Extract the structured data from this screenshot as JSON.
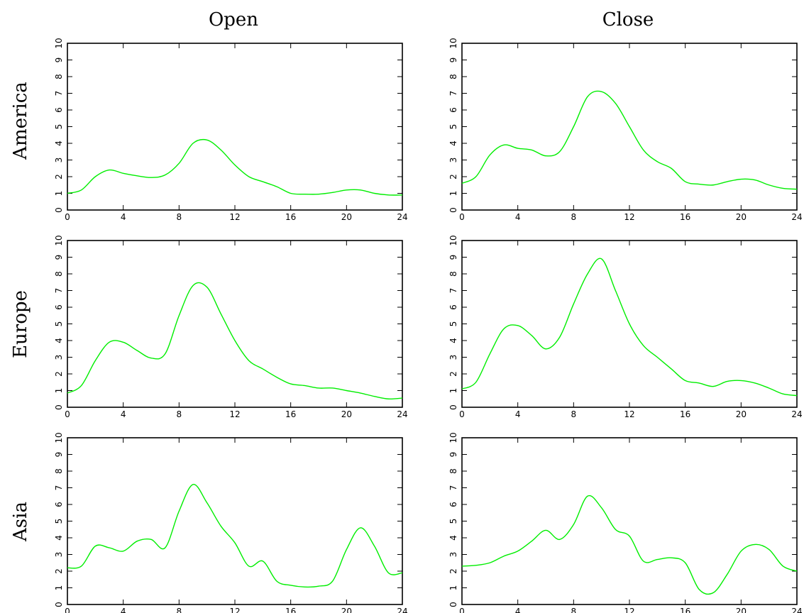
{
  "column_titles": [
    "Open",
    "Close"
  ],
  "row_titles": [
    "America",
    "Europe",
    "Asia"
  ],
  "line_color": "#00ee00",
  "chart_data": [
    {
      "type": "line",
      "row": "America",
      "column": "Open",
      "xlim": [
        0,
        24
      ],
      "ylim": [
        0,
        10
      ],
      "xticks": [
        0,
        4,
        8,
        12,
        16,
        20,
        24
      ],
      "yticks": [
        0,
        1,
        2,
        3,
        4,
        5,
        6,
        7,
        8,
        9,
        10
      ],
      "grid": false,
      "x": [
        0,
        1,
        2,
        3,
        4,
        5,
        6,
        7,
        8,
        9,
        10,
        11,
        12,
        13,
        14,
        15,
        16,
        17,
        18,
        19,
        20,
        21,
        22,
        23,
        24
      ],
      "y": [
        1.0,
        1.2,
        2.0,
        2.4,
        2.2,
        2.05,
        1.95,
        2.1,
        2.8,
        4.0,
        4.2,
        3.6,
        2.7,
        2.0,
        1.7,
        1.4,
        1.0,
        0.95,
        0.95,
        1.05,
        1.2,
        1.2,
        1.0,
        0.9,
        0.9
      ]
    },
    {
      "type": "line",
      "row": "America",
      "column": "Close",
      "xlim": [
        0,
        24
      ],
      "ylim": [
        0,
        10
      ],
      "xticks": [
        0,
        4,
        8,
        12,
        16,
        20,
        24
      ],
      "yticks": [
        0,
        1,
        2,
        3,
        4,
        5,
        6,
        7,
        8,
        9,
        10
      ],
      "grid": false,
      "x": [
        0,
        1,
        2,
        3,
        4,
        5,
        6,
        7,
        8,
        9,
        10,
        11,
        12,
        13,
        14,
        15,
        16,
        17,
        18,
        19,
        20,
        21,
        22,
        23,
        24
      ],
      "y": [
        1.6,
        2.0,
        3.3,
        3.9,
        3.7,
        3.6,
        3.25,
        3.5,
        5.0,
        6.8,
        7.1,
        6.4,
        5.0,
        3.6,
        2.9,
        2.5,
        1.7,
        1.55,
        1.5,
        1.7,
        1.85,
        1.8,
        1.5,
        1.3,
        1.25
      ]
    },
    {
      "type": "line",
      "row": "Europe",
      "column": "Open",
      "xlim": [
        0,
        24
      ],
      "ylim": [
        0,
        10
      ],
      "xticks": [
        0,
        4,
        8,
        12,
        16,
        20,
        24
      ],
      "yticks": [
        0,
        1,
        2,
        3,
        4,
        5,
        6,
        7,
        8,
        9,
        10
      ],
      "grid": false,
      "x": [
        0,
        1,
        2,
        3,
        4,
        5,
        6,
        7,
        8,
        9,
        10,
        11,
        12,
        13,
        14,
        15,
        16,
        17,
        18,
        19,
        20,
        21,
        22,
        23,
        24
      ],
      "y": [
        0.85,
        1.3,
        2.8,
        3.9,
        3.9,
        3.4,
        2.95,
        3.2,
        5.5,
        7.3,
        7.2,
        5.6,
        4.0,
        2.8,
        2.3,
        1.8,
        1.4,
        1.3,
        1.15,
        1.15,
        1.0,
        0.85,
        0.65,
        0.5,
        0.55
      ]
    },
    {
      "type": "line",
      "row": "Europe",
      "column": "Close",
      "xlim": [
        0,
        24
      ],
      "ylim": [
        0,
        10
      ],
      "xticks": [
        0,
        4,
        8,
        12,
        16,
        20,
        24
      ],
      "yticks": [
        0,
        1,
        2,
        3,
        4,
        5,
        6,
        7,
        8,
        9,
        10
      ],
      "grid": false,
      "x": [
        0,
        1,
        2,
        3,
        4,
        5,
        6,
        7,
        8,
        9,
        10,
        11,
        12,
        13,
        14,
        15,
        16,
        17,
        18,
        19,
        20,
        21,
        22,
        23,
        24
      ],
      "y": [
        1.1,
        1.5,
        3.2,
        4.7,
        4.9,
        4.3,
        3.5,
        4.2,
        6.2,
        8.0,
        8.9,
        7.0,
        5.0,
        3.7,
        3.0,
        2.3,
        1.6,
        1.45,
        1.25,
        1.55,
        1.6,
        1.45,
        1.15,
        0.8,
        0.7
      ]
    },
    {
      "type": "line",
      "row": "Asia",
      "column": "Open",
      "xlim": [
        0,
        24
      ],
      "ylim": [
        0,
        10
      ],
      "xticks": [
        0,
        4,
        8,
        12,
        16,
        20,
        24
      ],
      "yticks": [
        0,
        1,
        2,
        3,
        4,
        5,
        6,
        7,
        8,
        9,
        10
      ],
      "grid": false,
      "x": [
        0,
        1,
        2,
        3,
        4,
        5,
        6,
        7,
        8,
        9,
        10,
        11,
        12,
        13,
        14,
        15,
        16,
        17,
        18,
        19,
        20,
        21,
        22,
        23,
        24
      ],
      "y": [
        2.2,
        2.3,
        3.5,
        3.4,
        3.2,
        3.8,
        3.9,
        3.4,
        5.6,
        7.2,
        6.1,
        4.7,
        3.7,
        2.3,
        2.6,
        1.4,
        1.15,
        1.05,
        1.1,
        1.4,
        3.3,
        4.6,
        3.5,
        1.9,
        1.9
      ]
    },
    {
      "type": "line",
      "row": "Asia",
      "column": "Close",
      "xlim": [
        0,
        24
      ],
      "ylim": [
        0,
        10
      ],
      "xticks": [
        0,
        4,
        8,
        12,
        16,
        20,
        24
      ],
      "yticks": [
        0,
        1,
        2,
        3,
        4,
        5,
        6,
        7,
        8,
        9,
        10
      ],
      "grid": false,
      "x": [
        0,
        1,
        2,
        3,
        4,
        5,
        6,
        7,
        8,
        9,
        10,
        11,
        12,
        13,
        14,
        15,
        16,
        17,
        18,
        19,
        20,
        21,
        22,
        23,
        24
      ],
      "y": [
        2.3,
        2.35,
        2.5,
        2.9,
        3.2,
        3.8,
        4.45,
        3.9,
        4.8,
        6.5,
        5.8,
        4.5,
        4.1,
        2.6,
        2.7,
        2.8,
        2.5,
        0.9,
        0.7,
        1.8,
        3.2,
        3.6,
        3.3,
        2.3,
        2.0
      ]
    }
  ]
}
